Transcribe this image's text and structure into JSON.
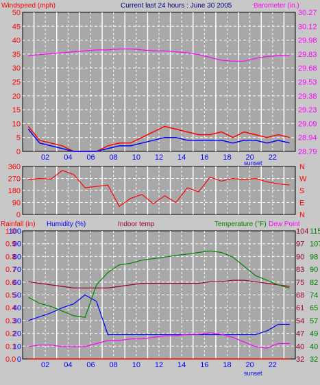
{
  "header": {
    "left": "Windspeed (mph)",
    "center": "Current last 24 hours : June 30 2005",
    "right": "Barometer (in.)"
  },
  "colors": {
    "frame": "#c8c8c8",
    "plot_bg": "#a8a8a8",
    "grid": "#ffffff",
    "wind_speed": "#ff0000",
    "wind_gust_avg": "#0000ff",
    "barometer": "#ff00ff",
    "wind_dir": "#ff0000",
    "rain": "#ff0000",
    "humidity": "#0000ff",
    "indoor": "#990033",
    "temperature": "#008000",
    "dewpoint": "#ff00ff"
  },
  "hour_ticks": [
    "02",
    "04",
    "06",
    "08",
    "10",
    "12",
    "14",
    "16",
    "18",
    "20",
    "22"
  ],
  "sunset_label": "sunset",
  "chart_data": [
    {
      "type": "line",
      "panel": "wind_barometer",
      "title": "Current last 24 hours : June 30 2005",
      "ylabel": "Windspeed (mph)",
      "ylabel_right": "Barometer (in.)",
      "ylim": [
        0,
        50
      ],
      "y_ticks": [
        "50",
        "45",
        "40",
        "35",
        "30",
        "25",
        "20",
        "15",
        "10",
        "5",
        "0"
      ],
      "ylim_right": [
        28.79,
        30.27
      ],
      "y_ticks_right": [
        "30.27",
        "30.12",
        "29.98",
        "29.83",
        "29.68",
        "29.53",
        "29.38",
        "29.23",
        "29.09",
        "28.94",
        "28.79"
      ],
      "x": [
        0,
        1,
        2,
        3,
        4,
        5,
        6,
        7,
        8,
        9,
        10,
        11,
        12,
        13,
        14,
        15,
        16,
        17,
        18,
        19,
        20,
        21,
        22,
        23
      ],
      "series": [
        {
          "name": "Windspeed (mph)",
          "axis": "left",
          "color": "#ff0000",
          "values": [
            9,
            4,
            3,
            2,
            0,
            0,
            0,
            2,
            3,
            3,
            5,
            7,
            9,
            8,
            7,
            6,
            6,
            7,
            5,
            7,
            6,
            5,
            6,
            5
          ]
        },
        {
          "name": "",
          "axis": "left",
          "color": "#0000ff",
          "values": [
            8,
            3,
            2,
            1,
            0,
            0,
            0,
            1,
            2,
            2,
            3,
            4,
            5,
            5,
            4,
            4,
            4,
            4,
            3,
            4,
            4,
            3,
            4,
            3
          ]
        },
        {
          "name": "Barometer (in.)",
          "axis": "right",
          "color": "#ff00ff",
          "values": [
            29.81,
            29.82,
            29.83,
            29.84,
            29.85,
            29.86,
            29.87,
            29.87,
            29.88,
            29.88,
            29.87,
            29.86,
            29.86,
            29.85,
            29.84,
            29.82,
            29.79,
            29.76,
            29.75,
            29.75,
            29.78,
            29.8,
            29.81,
            29.81
          ]
        }
      ]
    },
    {
      "type": "line",
      "panel": "wind_direction",
      "ylim": [
        0,
        360
      ],
      "y_ticks": [
        "360",
        "270",
        "180",
        "90",
        "0"
      ],
      "y_ticks_right": [
        "N",
        "W",
        "S",
        "E",
        "N"
      ],
      "x": [
        0,
        1,
        2,
        3,
        4,
        5,
        6,
        7,
        8,
        9,
        10,
        11,
        12,
        13,
        14,
        15,
        16,
        17,
        18,
        19,
        20,
        21,
        22,
        23
      ],
      "series": [
        {
          "name": "",
          "color": "#ff0000",
          "values": [
            260,
            270,
            265,
            330,
            300,
            200,
            210,
            220,
            60,
            120,
            150,
            80,
            140,
            90,
            200,
            170,
            280,
            250,
            270,
            260,
            270,
            245,
            230,
            220
          ]
        }
      ]
    },
    {
      "type": "line",
      "panel": "rain_humidity_temperature",
      "labels": {
        "rain": "Rainfall (in)",
        "humidity": "Humidity (%)",
        "indoor": "Indoor temp",
        "temperature": "Temperature (°F)",
        "dewpoint": "Dew Point"
      },
      "y_ticks_rain": [
        "1.0",
        "0.9",
        "0.8",
        "0.7",
        "0.6",
        "0.5",
        "0.4",
        "0.3",
        "0.2",
        "0.1",
        "0.0"
      ],
      "y_ticks_humidity": [
        "100",
        "90",
        "80",
        "70",
        "60",
        "50",
        "40",
        "30",
        "20",
        "10",
        "0"
      ],
      "y_ticks_indoor": [
        "104",
        "97",
        "90",
        "83",
        "75",
        "68",
        "61",
        "54",
        "47",
        "40",
        "32"
      ],
      "y_ticks_temperature": [
        "115",
        "107",
        "98",
        "90",
        "82",
        "74",
        "65",
        "57",
        "49",
        "40",
        "32"
      ],
      "ylim_humidity": [
        0,
        100
      ],
      "ylim_temperature": [
        32,
        115
      ],
      "x": [
        0,
        1,
        2,
        3,
        4,
        5,
        6,
        7,
        8,
        9,
        10,
        11,
        12,
        13,
        14,
        15,
        16,
        17,
        18,
        19,
        20,
        21,
        22,
        23
      ],
      "series": [
        {
          "name": "Rainfall (in)",
          "color": "#ff0000",
          "values": [
            0,
            0,
            0,
            0,
            0,
            0,
            0,
            0,
            0,
            0,
            0,
            0,
            0,
            0,
            0,
            0,
            0,
            0,
            0,
            0,
            0,
            0,
            0,
            0
          ]
        },
        {
          "name": "Humidity (%)",
          "color": "#0000ff",
          "values": [
            30,
            33,
            36,
            40,
            43,
            50,
            45,
            19,
            19,
            19,
            19,
            19,
            19,
            19,
            19,
            19,
            19,
            19,
            19,
            19,
            19,
            22,
            27,
            27
          ]
        },
        {
          "name": "Indoor temp",
          "color": "#990033",
          "values": [
            82,
            81,
            80,
            79,
            78,
            78,
            78,
            78,
            79,
            80,
            81,
            81,
            81,
            81,
            81,
            81,
            82,
            82,
            83,
            83,
            82,
            81,
            80,
            79
          ]
        },
        {
          "name": "Temperature (°F)",
          "color": "#008000",
          "values": [
            72,
            68,
            66,
            63,
            60,
            59,
            80,
            88,
            93,
            94,
            96,
            97,
            98,
            99,
            100,
            101,
            102,
            101,
            98,
            92,
            86,
            83,
            80,
            78
          ]
        },
        {
          "name": "Dew Point",
          "color": "#ff00ff",
          "values": [
            40,
            41,
            41,
            40,
            40,
            40,
            42,
            44,
            44,
            45,
            45,
            46,
            47,
            47,
            48,
            48,
            49,
            48,
            46,
            43,
            40,
            39,
            42,
            42
          ]
        }
      ]
    }
  ]
}
